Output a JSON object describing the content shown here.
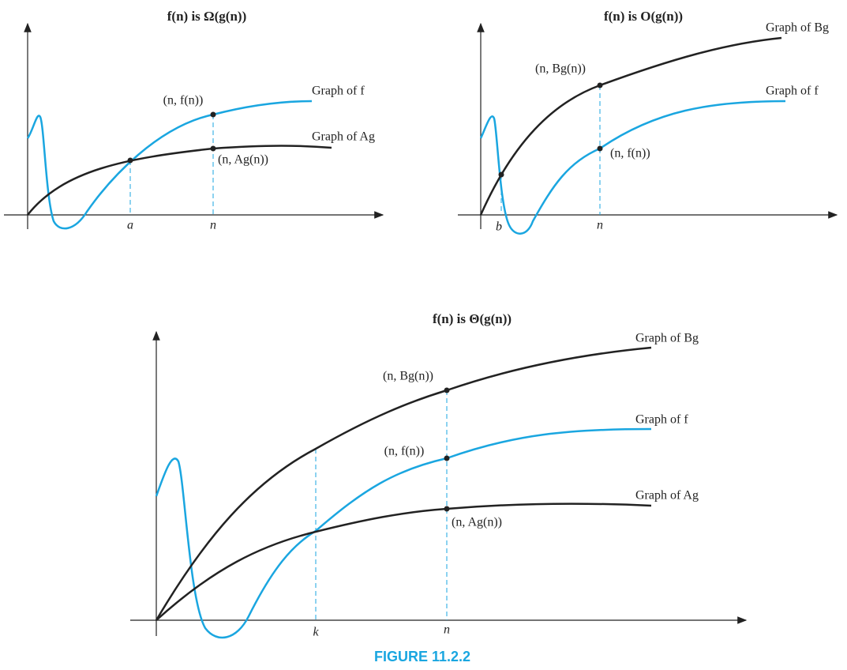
{
  "panels": [
    {
      "title": "f(n) is Ω(g(n))",
      "curve_labels": [
        "Graph of f",
        "Graph of Ag"
      ],
      "point_labels": [
        "(n, f(n))",
        "(n, Ag(n))"
      ],
      "axis_labels": [
        "a",
        "n"
      ]
    },
    {
      "title": "f(n) is O(g(n))",
      "curve_labels": [
        "Graph of Bg",
        "Graph of f"
      ],
      "point_labels": [
        "(n, Bg(n))",
        "(n, f(n))"
      ],
      "axis_labels": [
        "b",
        "n"
      ]
    },
    {
      "title": "f(n) is Θ(g(n))",
      "curve_labels": [
        "Graph of Bg",
        "Graph of f",
        "Graph of Ag"
      ],
      "point_labels": [
        "(n, Bg(n))",
        "(n, f(n))",
        "(n, Ag(n))"
      ],
      "axis_labels": [
        "k",
        "n"
      ]
    }
  ],
  "caption": "FIGURE 11.2.2"
}
